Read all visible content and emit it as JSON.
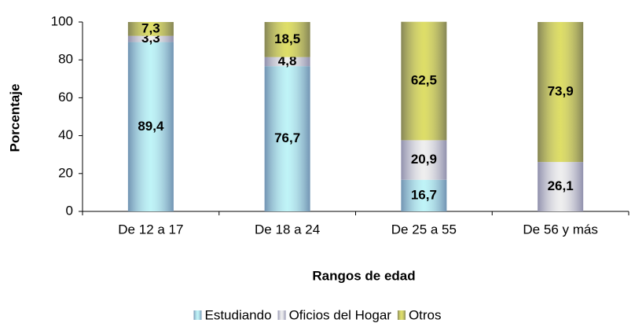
{
  "chart_data": {
    "type": "stacked_bar",
    "x_label": "Rangos de edad",
    "y_label": "Porcentaje",
    "categories": [
      "De 12 a 17",
      "De 18 a 24",
      "De 25 a 55",
      "De 56 y más"
    ],
    "series": [
      {
        "name": "Estudiando",
        "color": "#b4f2f6",
        "values": [
          89.4,
          76.7,
          16.7,
          null
        ],
        "value_labels": [
          "89,4",
          "76,7",
          "16,7",
          null
        ]
      },
      {
        "name": "Oficios del Hogar",
        "color": "#ececec",
        "values": [
          3.3,
          4.8,
          20.9,
          26.1
        ],
        "value_labels": [
          "3,3",
          "4,8",
          "20,9",
          "26,1"
        ]
      },
      {
        "name": "Otros",
        "color": "#d8d84c",
        "values": [
          7.3,
          18.5,
          62.5,
          73.9
        ],
        "value_labels": [
          "7,3",
          "18,5",
          "62,5",
          "73,9"
        ]
      }
    ],
    "ylim": [
      0,
      100
    ],
    "yticks": [
      0,
      20,
      40,
      60,
      80,
      100
    ],
    "legend": "bottom"
  }
}
